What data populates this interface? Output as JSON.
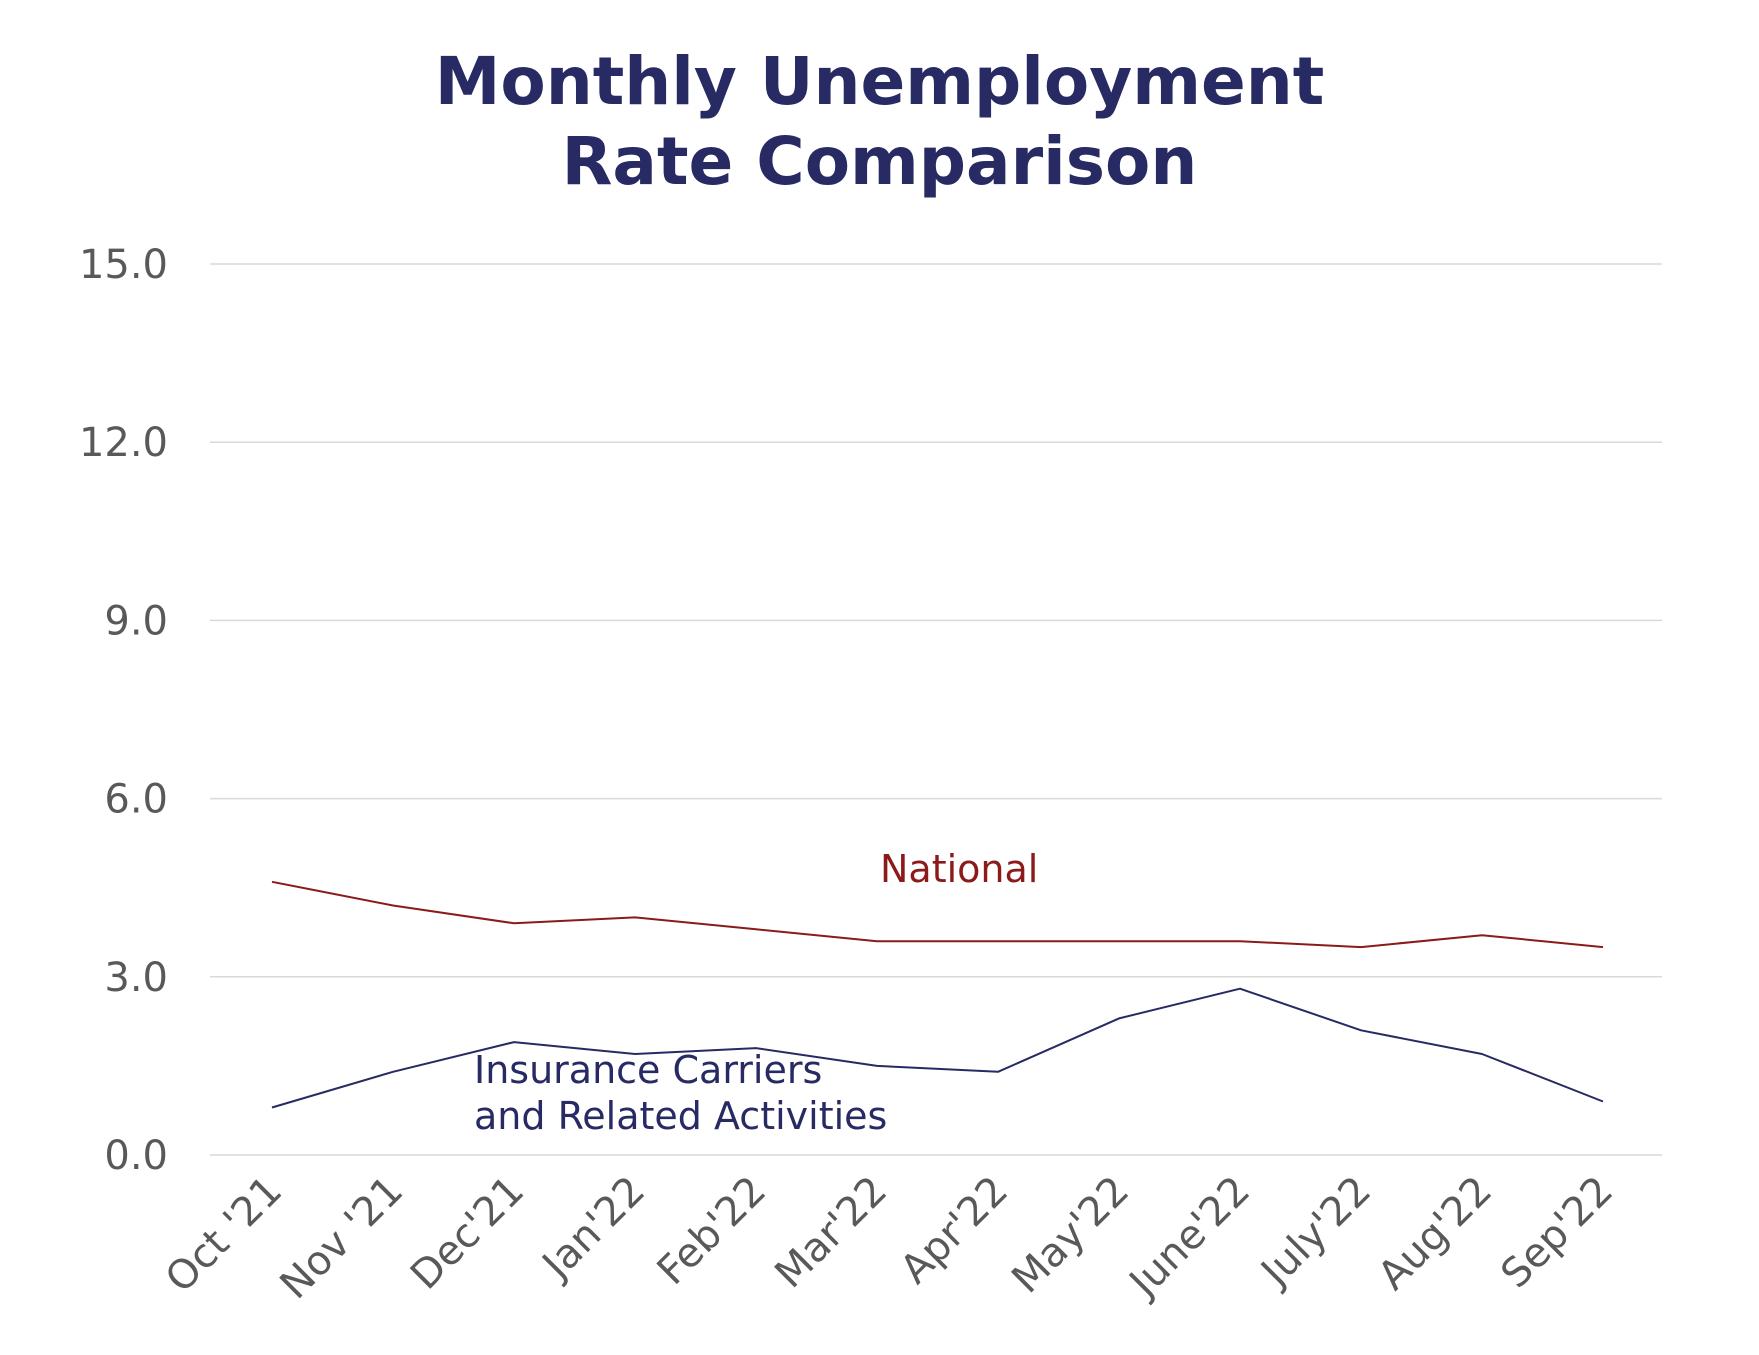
{
  "chart_data": {
    "type": "line",
    "title": [
      "Monthly Unemployment",
      "Rate Comparison"
    ],
    "xlabel": "",
    "ylabel": "",
    "categories": [
      "Oct '21",
      "Nov '21",
      "Dec'21",
      "Jan'22",
      "Feb'22",
      "Mar'22",
      "Apr'22",
      "May'22",
      "June'22",
      "July'22",
      "Aug'22",
      "Sep'22"
    ],
    "y_ticks": [
      "0.0",
      "3.0",
      "6.0",
      "9.0",
      "12.0",
      "15.0"
    ],
    "ylim": [
      0,
      15
    ],
    "grid": true,
    "legend": "none",
    "series": [
      {
        "name": "National",
        "label_lines": [
          "National"
        ],
        "color": "#8b1a1a",
        "values": [
          4.6,
          4.2,
          3.9,
          4.0,
          3.8,
          3.6,
          3.6,
          3.6,
          3.6,
          3.5,
          3.7,
          3.5
        ]
      },
      {
        "name": "Insurance Carriers and Related Activities",
        "label_lines": [
          "Insurance Carriers",
          "and Related Activities"
        ],
        "color": "#272a63",
        "values": [
          0.8,
          1.4,
          1.9,
          1.7,
          1.8,
          1.5,
          1.4,
          2.3,
          2.8,
          2.1,
          1.7,
          0.9
        ]
      }
    ]
  }
}
